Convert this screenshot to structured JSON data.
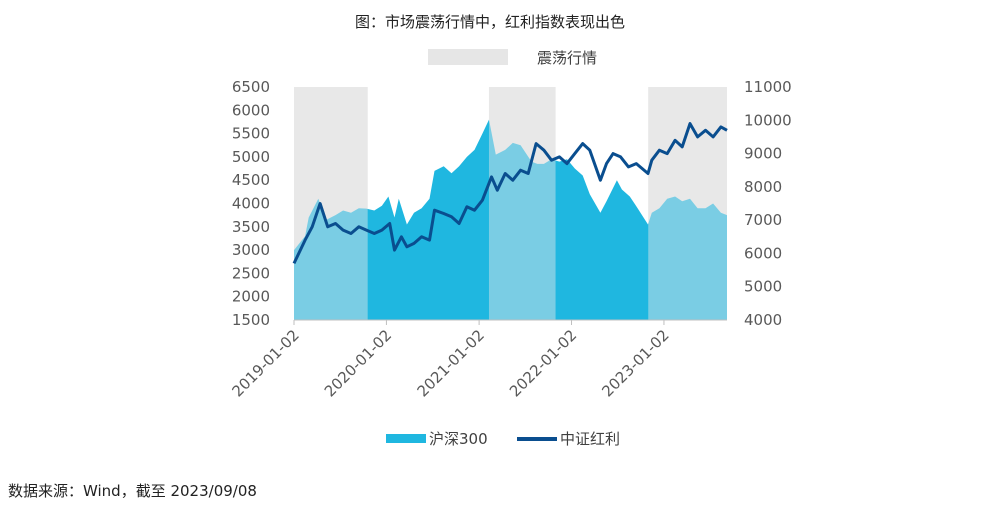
{
  "chart_data": {
    "type": "area",
    "title": "图：市场震荡行情中，红利指数表现出色",
    "shaded_band_label": "震荡行情",
    "shaded_periods": [
      [
        "2019-01-02",
        "2019-10-20"
      ],
      [
        "2021-02-10",
        "2021-10-31"
      ],
      [
        "2022-11-01",
        "2023-09-08"
      ]
    ],
    "x_ticks": [
      "2019-01-02",
      "2020-01-02",
      "2021-01-02",
      "2022-01-02",
      "2023-01-02"
    ],
    "x_range": [
      "2019-01-02",
      "2023-09-08"
    ],
    "y_left": {
      "ticks": [
        1500,
        2000,
        2500,
        3000,
        3500,
        4000,
        4500,
        5000,
        5500,
        6000,
        6500
      ],
      "range": [
        1500,
        6500
      ]
    },
    "y_right": {
      "ticks": [
        4000,
        5000,
        6000,
        7000,
        8000,
        9000,
        10000,
        11000
      ],
      "range": [
        4000,
        11000
      ]
    },
    "series": [
      {
        "name": "沪深300",
        "type": "area",
        "axis": "left",
        "color": "#1fb7e0",
        "x": [
          "2019-01-02",
          "2019-02-15",
          "2019-03-01",
          "2019-04-08",
          "2019-05-10",
          "2019-06-15",
          "2019-07-15",
          "2019-08-15",
          "2019-09-15",
          "2019-10-15",
          "2019-11-15",
          "2019-12-15",
          "2020-01-10",
          "2020-02-03",
          "2020-02-20",
          "2020-03-23",
          "2020-04-20",
          "2020-05-20",
          "2020-06-20",
          "2020-07-10",
          "2020-08-15",
          "2020-09-15",
          "2020-10-15",
          "2020-11-15",
          "2020-12-15",
          "2021-01-15",
          "2021-02-10",
          "2021-03-09",
          "2021-04-15",
          "2021-05-15",
          "2021-06-15",
          "2021-07-28",
          "2021-08-20",
          "2021-09-15",
          "2021-10-15",
          "2021-11-15",
          "2021-12-15",
          "2022-01-15",
          "2022-02-15",
          "2022-03-15",
          "2022-04-26",
          "2022-05-20",
          "2022-06-30",
          "2022-07-20",
          "2022-08-20",
          "2022-09-20",
          "2022-10-31",
          "2022-11-15",
          "2022-12-15",
          "2023-01-15",
          "2023-02-15",
          "2023-03-15",
          "2023-04-15",
          "2023-05-15",
          "2023-06-15",
          "2023-07-15",
          "2023-08-15",
          "2023-09-08"
        ],
        "values": [
          3000,
          3300,
          3700,
          4100,
          3650,
          3750,
          3850,
          3800,
          3900,
          3890,
          3850,
          3950,
          4150,
          3700,
          4100,
          3550,
          3800,
          3900,
          4100,
          4700,
          4800,
          4650,
          4800,
          5000,
          5150,
          5500,
          5800,
          5050,
          5150,
          5300,
          5250,
          4900,
          4850,
          4850,
          4950,
          4900,
          4950,
          4750,
          4600,
          4200,
          3800,
          4050,
          4500,
          4300,
          4150,
          3900,
          3550,
          3800,
          3900,
          4100,
          4150,
          4050,
          4100,
          3900,
          3900,
          4000,
          3800,
          3750
        ]
      },
      {
        "name": "中证红利",
        "type": "line",
        "axis": "right",
        "color": "#0a4e8f",
        "x": [
          "2019-01-02",
          "2019-02-15",
          "2019-03-15",
          "2019-04-15",
          "2019-05-15",
          "2019-06-15",
          "2019-07-15",
          "2019-08-15",
          "2019-09-15",
          "2019-10-15",
          "2019-11-15",
          "2019-12-15",
          "2020-01-15",
          "2020-02-03",
          "2020-03-01",
          "2020-03-23",
          "2020-04-20",
          "2020-05-20",
          "2020-06-20",
          "2020-07-10",
          "2020-08-15",
          "2020-09-15",
          "2020-10-15",
          "2020-11-15",
          "2020-12-15",
          "2021-01-15",
          "2021-02-20",
          "2021-03-15",
          "2021-04-15",
          "2021-05-15",
          "2021-06-15",
          "2021-07-15",
          "2021-08-15",
          "2021-09-15",
          "2021-10-15",
          "2021-11-15",
          "2021-12-15",
          "2022-01-15",
          "2022-02-15",
          "2022-03-15",
          "2022-04-26",
          "2022-05-20",
          "2022-06-15",
          "2022-07-15",
          "2022-08-15",
          "2022-09-15",
          "2022-10-31",
          "2022-11-15",
          "2022-12-15",
          "2023-01-15",
          "2023-02-15",
          "2023-03-15",
          "2023-04-15",
          "2023-05-15",
          "2023-06-15",
          "2023-07-15",
          "2023-08-15",
          "2023-09-08"
        ],
        "values": [
          5700,
          6400,
          6800,
          7500,
          6800,
          6900,
          6700,
          6600,
          6800,
          6700,
          6600,
          6700,
          6900,
          6100,
          6500,
          6200,
          6300,
          6500,
          6400,
          7300,
          7200,
          7100,
          6900,
          7400,
          7300,
          7600,
          8300,
          7900,
          8400,
          8200,
          8500,
          8400,
          9300,
          9100,
          8800,
          8900,
          8700,
          9000,
          9300,
          9100,
          8200,
          8700,
          9000,
          8900,
          8600,
          8700,
          8400,
          8800,
          9100,
          9000,
          9400,
          9200,
          9900,
          9500,
          9700,
          9500,
          9800,
          9700
        ]
      }
    ],
    "legend": {
      "position": "bottom",
      "entries": [
        "沪深300",
        "中证红利"
      ]
    },
    "source_note": "数据来源：Wind，截至 2023/09/08"
  }
}
